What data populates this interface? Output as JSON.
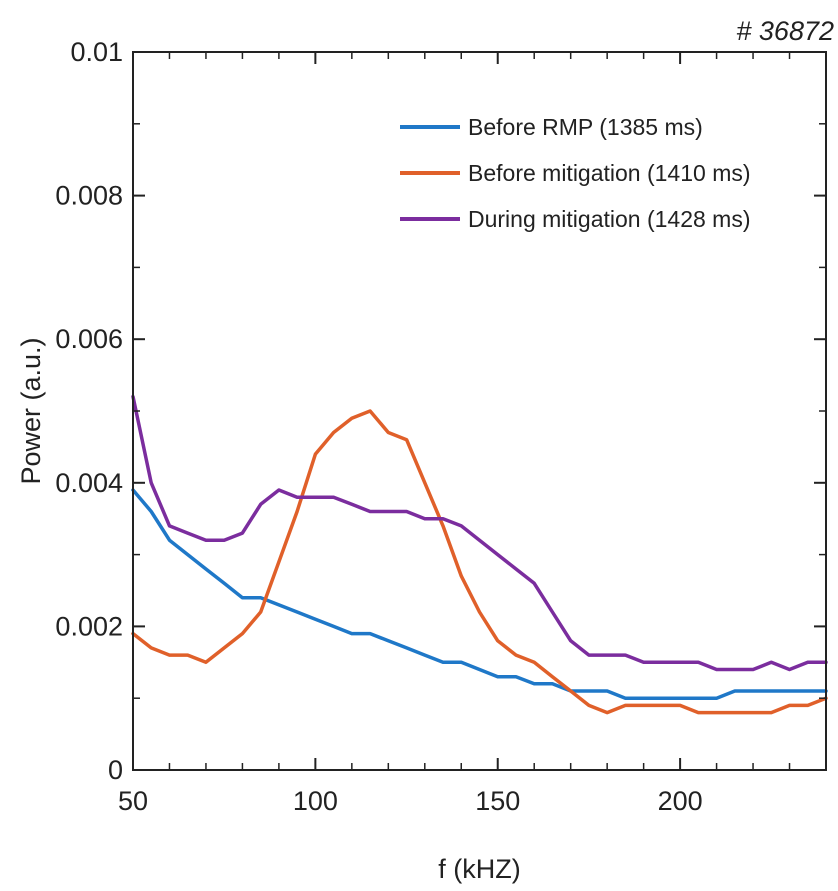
{
  "chart_data": {
    "type": "line",
    "shot_label": "# 36872",
    "title": "",
    "xlabel": "f (kHZ)",
    "ylabel": "Power (a.u.)",
    "xlim": [
      50,
      240
    ],
    "ylim": [
      0,
      0.01
    ],
    "xticks": [
      50,
      100,
      150,
      200
    ],
    "xtick_labels": [
      "50",
      "100",
      "150",
      "200"
    ],
    "yticks": [
      0,
      0.002,
      0.004,
      0.006,
      0.008,
      0.01
    ],
    "ytick_labels": [
      "0",
      "0.002",
      "0.004",
      "0.006",
      "0.008",
      "0.01"
    ],
    "grid": false,
    "legend_position": "top-right",
    "series": [
      {
        "name": "Before RMP (1385 ms)",
        "color": "#1f78c8",
        "x": [
          50,
          55,
          60,
          65,
          70,
          75,
          80,
          85,
          90,
          95,
          100,
          105,
          110,
          115,
          120,
          125,
          130,
          135,
          140,
          145,
          150,
          155,
          160,
          165,
          170,
          175,
          180,
          185,
          190,
          195,
          200,
          205,
          210,
          215,
          220,
          225,
          230,
          235,
          240
        ],
        "y": [
          0.0039,
          0.0036,
          0.0032,
          0.003,
          0.0028,
          0.0026,
          0.0024,
          0.0024,
          0.0023,
          0.0022,
          0.0021,
          0.002,
          0.0019,
          0.0019,
          0.0018,
          0.0017,
          0.0016,
          0.0015,
          0.0015,
          0.0014,
          0.0013,
          0.0013,
          0.0012,
          0.0012,
          0.0011,
          0.0011,
          0.0011,
          0.001,
          0.001,
          0.001,
          0.001,
          0.001,
          0.001,
          0.0011,
          0.0011,
          0.0011,
          0.0011,
          0.0011,
          0.0011
        ]
      },
      {
        "name": "Before mitigation (1410 ms)",
        "color": "#e0602a",
        "x": [
          50,
          55,
          60,
          65,
          70,
          75,
          80,
          85,
          90,
          95,
          100,
          105,
          110,
          115,
          120,
          125,
          130,
          135,
          140,
          145,
          150,
          155,
          160,
          165,
          170,
          175,
          180,
          185,
          190,
          195,
          200,
          205,
          210,
          215,
          220,
          225,
          230,
          235,
          240
        ],
        "y": [
          0.0019,
          0.0017,
          0.0016,
          0.0016,
          0.0015,
          0.0017,
          0.0019,
          0.0022,
          0.0029,
          0.0036,
          0.0044,
          0.0047,
          0.0049,
          0.005,
          0.0047,
          0.0046,
          0.004,
          0.0034,
          0.0027,
          0.0022,
          0.0018,
          0.0016,
          0.0015,
          0.0013,
          0.0011,
          0.0009,
          0.0008,
          0.0009,
          0.0009,
          0.0009,
          0.0009,
          0.0008,
          0.0008,
          0.0008,
          0.0008,
          0.0008,
          0.0009,
          0.0009,
          0.001
        ]
      },
      {
        "name": "During mitigation (1428 ms)",
        "color": "#7b2d9e",
        "x": [
          50,
          55,
          60,
          65,
          70,
          75,
          80,
          85,
          90,
          95,
          100,
          105,
          110,
          115,
          120,
          125,
          130,
          135,
          140,
          145,
          150,
          155,
          160,
          165,
          170,
          175,
          180,
          185,
          190,
          195,
          200,
          205,
          210,
          215,
          220,
          225,
          230,
          235,
          240
        ],
        "y": [
          0.0052,
          0.004,
          0.0034,
          0.0033,
          0.0032,
          0.0032,
          0.0033,
          0.0037,
          0.0039,
          0.0038,
          0.0038,
          0.0038,
          0.0037,
          0.0036,
          0.0036,
          0.0036,
          0.0035,
          0.0035,
          0.0034,
          0.0032,
          0.003,
          0.0028,
          0.0026,
          0.0022,
          0.0018,
          0.0016,
          0.0016,
          0.0016,
          0.0015,
          0.0015,
          0.0015,
          0.0015,
          0.0014,
          0.0014,
          0.0014,
          0.0015,
          0.0014,
          0.0015,
          0.0015
        ]
      }
    ]
  }
}
